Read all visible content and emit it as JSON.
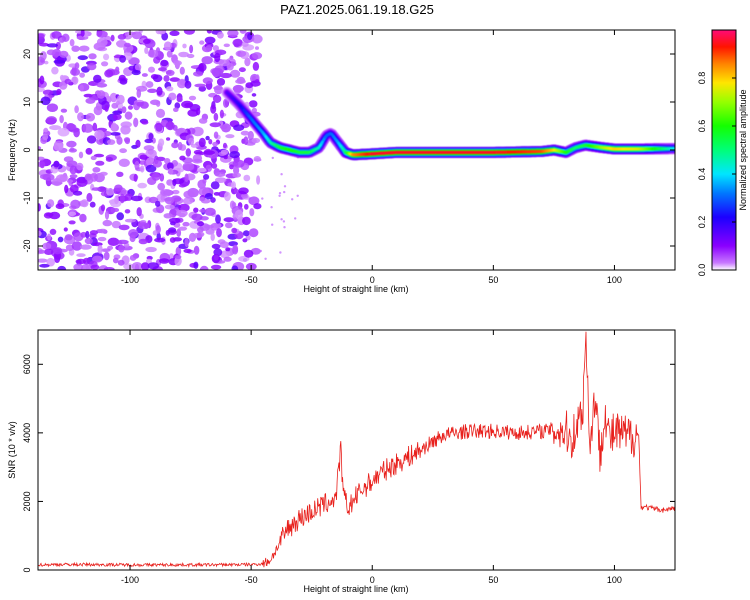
{
  "title": "PAZ1.2025.061.19.18.G25",
  "colors": {
    "snr_line": "#e8201c",
    "spectrum_band_core": "#e8201c",
    "scatter": "#7a00ff"
  },
  "colorbar": {
    "label": "Normalized spectral amplitude",
    "ticks": [
      "0.0",
      "0.2",
      "0.4",
      "0.6",
      "0.8"
    ],
    "tick_values": [
      0.0,
      0.2,
      0.4,
      0.6,
      0.8
    ],
    "range": [
      0,
      1
    ],
    "colormap": "gist_rainbow (magenta-blue-cyan-green-yellow-red, white at 0)"
  },
  "chart_data": [
    {
      "type": "heatmap",
      "xlabel": "Height of straight line (km)",
      "ylabel": "Frequency (Hz)",
      "xlim": [
        -138,
        125
      ],
      "ylim": [
        -25,
        25
      ],
      "x_ticks": [
        "-100",
        "-50",
        "0",
        "50",
        "100"
      ],
      "x_tick_values": [
        -100,
        -50,
        0,
        50,
        100
      ],
      "y_ticks": [
        "20",
        "10",
        "0",
        "-10",
        "-20"
      ],
      "y_tick_values": [
        20,
        10,
        0,
        -10,
        -20
      ],
      "noise_region_x": [
        -138,
        -47
      ],
      "ridge": {
        "x": [
          -60,
          -55,
          -50,
          -45,
          -42,
          -38,
          -34,
          -30,
          -26,
          -22,
          -19,
          -17,
          -14,
          -11,
          -8,
          0,
          10,
          30,
          50,
          70,
          75,
          80,
          84,
          88,
          95,
          100,
          110,
          125
        ],
        "freq_hz": [
          12,
          9.5,
          6.5,
          3.5,
          1.5,
          0.5,
          0,
          -0.5,
          -0.5,
          0.5,
          3,
          3.5,
          1.5,
          -0.5,
          -1,
          -0.8,
          -0.5,
          -0.5,
          -0.5,
          -0.3,
          0,
          -0.5,
          0.5,
          1,
          0.5,
          0.2,
          0.2,
          0.3
        ],
        "amplitude": [
          0.15,
          0.2,
          0.3,
          0.35,
          0.45,
          0.55,
          0.6,
          0.55,
          0.55,
          0.45,
          0.3,
          0.3,
          0.35,
          0.5,
          0.85,
          0.95,
          0.95,
          0.95,
          0.95,
          0.9,
          0.8,
          0.6,
          0.5,
          0.55,
          0.7,
          0.8,
          0.75,
          0.4
        ]
      }
    },
    {
      "type": "line",
      "xlabel": "Height of straight line (km)",
      "ylabel": "SNR (10 * v/v)",
      "xlim": [
        -138,
        125
      ],
      "ylim": [
        0,
        7000
      ],
      "x_ticks": [
        "-100",
        "-50",
        "0",
        "50",
        "100"
      ],
      "x_tick_values": [
        -100,
        -50,
        0,
        50,
        100
      ],
      "y_ticks": [
        "6000",
        "4000",
        "2000",
        "0"
      ],
      "y_tick_values": [
        6000,
        4000,
        2000,
        0
      ],
      "series": [
        {
          "x": [
            -138,
            -130,
            -120,
            -110,
            -100,
            -90,
            -80,
            -70,
            -60,
            -50,
            -45,
            -42,
            -40,
            -38,
            -35,
            -30,
            -25,
            -20,
            -15,
            -13,
            -12,
            -10,
            -5,
            0,
            5,
            10,
            15,
            20,
            25,
            30,
            40,
            50,
            60,
            70,
            75,
            80,
            82,
            85,
            87,
            88,
            90,
            92,
            94,
            96,
            98,
            100,
            105,
            110,
            111,
            112,
            115,
            120,
            125
          ],
          "y": [
            150,
            160,
            160,
            155,
            150,
            150,
            150,
            150,
            155,
            160,
            180,
            300,
            550,
            800,
            1200,
            1500,
            1700,
            1900,
            2100,
            3500,
            2200,
            1800,
            2300,
            2600,
            2900,
            3100,
            3300,
            3500,
            3750,
            3950,
            4050,
            4050,
            4000,
            4050,
            4100,
            4050,
            3800,
            4300,
            4800,
            7000,
            3600,
            5200,
            3300,
            4700,
            3800,
            4000,
            3900,
            3950,
            1800,
            1850,
            1800,
            1750,
            1800
          ]
        }
      ]
    }
  ]
}
